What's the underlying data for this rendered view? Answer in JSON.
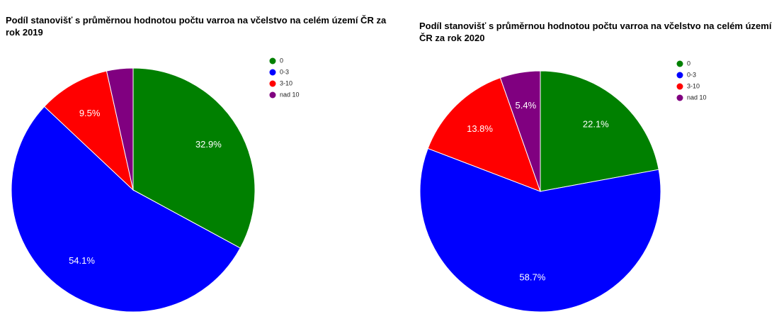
{
  "chart_data": [
    {
      "type": "pie",
      "title": "Podíl stanovišť s průměrnou hodnotou počtu varroa na včelstvo na celém území ČR za rok 2019",
      "categories": [
        "0",
        "0-3",
        "3-10",
        "nad 10"
      ],
      "values": [
        32.9,
        54.1,
        9.5,
        3.5
      ],
      "value_labels": [
        "32.9%",
        "54.1%",
        "9.5%",
        null
      ],
      "colors": [
        "#008000",
        "#0000ff",
        "#ff0000",
        "#800080"
      ],
      "legend": "right"
    },
    {
      "type": "pie",
      "title": "Podíl stanovišť s průměrnou hodnotou počtu varroa na včelstvo na celém území ČR za rok 2020",
      "categories": [
        "0",
        "0-3",
        "3-10",
        "nad 10"
      ],
      "values": [
        22.1,
        58.7,
        13.8,
        5.4
      ],
      "value_labels": [
        "22.1%",
        "58.7%",
        "13.8%",
        "5.4%"
      ],
      "colors": [
        "#008000",
        "#0000ff",
        "#ff0000",
        "#800080"
      ],
      "legend": "right"
    }
  ]
}
